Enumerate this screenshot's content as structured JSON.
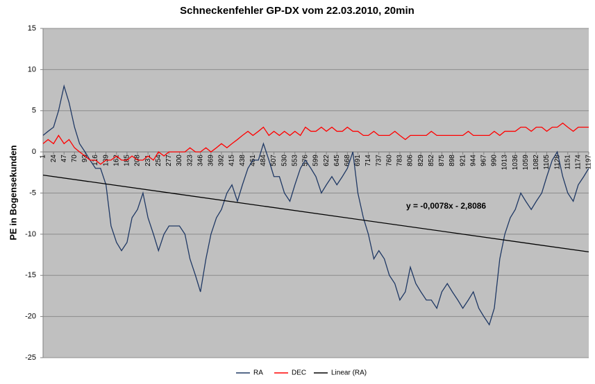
{
  "chart_data": {
    "type": "line",
    "title": "Schneckenfehler  GP-DX vom 22.03.2010, 20min",
    "y_label": "PE in Bogensekunden",
    "annotation": "y = -0,0078x - 2,8086",
    "x": [
      1,
      12,
      24,
      35,
      47,
      58,
      70,
      81,
      93,
      104,
      116,
      127,
      139,
      150,
      162,
      173,
      185,
      196,
      208,
      220,
      231,
      243,
      254,
      266,
      277,
      289,
      300,
      312,
      323,
      335,
      346,
      358,
      369,
      381,
      392,
      404,
      415,
      427,
      438,
      450,
      461,
      473,
      484,
      496,
      507,
      519,
      530,
      542,
      553,
      565,
      576,
      588,
      599,
      611,
      622,
      634,
      645,
      657,
      668,
      680,
      691,
      703,
      714,
      726,
      737,
      749,
      760,
      772,
      783,
      795,
      806,
      818,
      829,
      841,
      852,
      864,
      875,
      887,
      898,
      910,
      921,
      933,
      944,
      956,
      967,
      979,
      990,
      1002,
      1013,
      1025,
      1036,
      1048,
      1059,
      1071,
      1082,
      1094,
      1105,
      1117,
      1128,
      1140,
      1151,
      1163,
      1174,
      1186,
      1197
    ],
    "series": [
      {
        "name": "RA",
        "color": "#1f3864",
        "values": [
          2,
          2.5,
          3,
          5,
          8,
          6,
          3,
          1,
          0,
          -1,
          -2,
          -2,
          -4,
          -9,
          -11,
          -12,
          -11,
          -8,
          -7,
          -5,
          -8,
          -10,
          -12,
          -10,
          -9,
          -9,
          -9,
          -10,
          -13,
          -15,
          -17,
          -13,
          -10,
          -8,
          -7,
          -5,
          -4,
          -6,
          -4,
          -2,
          -1,
          -1,
          1,
          -1,
          -3,
          -3,
          -5,
          -6,
          -4,
          -2,
          -1,
          -2,
          -3,
          -5,
          -4,
          -3,
          -4,
          -3,
          -2,
          0,
          -5,
          -8,
          -10,
          -13,
          -12,
          -13,
          -15,
          -16,
          -18,
          -17,
          -14,
          -16,
          -17,
          -18,
          -18,
          -19,
          -17,
          -16,
          -17,
          -18,
          -19,
          -18,
          -17,
          -19,
          -20,
          -21,
          -19,
          -13,
          -10,
          -8,
          -7,
          -5,
          -6,
          -7,
          -6,
          -5,
          -3,
          -1,
          0,
          -3,
          -5,
          -6,
          -4,
          -3,
          -2
        ]
      },
      {
        "name": "DEC",
        "color": "#ff0000",
        "values": [
          1,
          1.5,
          1,
          2,
          1,
          1.5,
          0.5,
          0,
          -0.5,
          -1,
          -1,
          -1.5,
          -1,
          -1,
          -0.5,
          -1,
          -1,
          -0.5,
          -1,
          -1,
          -0.5,
          -1,
          0,
          -0.5,
          0,
          0,
          0,
          0,
          0.5,
          0,
          0,
          0.5,
          0,
          0.5,
          1,
          0.5,
          1,
          1.5,
          2,
          2.5,
          2,
          2.5,
          3,
          2,
          2.5,
          2,
          2.5,
          2,
          2.5,
          2,
          3,
          2.5,
          2.5,
          3,
          2.5,
          3,
          2.5,
          2.5,
          3,
          2.5,
          2.5,
          2,
          2,
          2.5,
          2,
          2,
          2,
          2.5,
          2,
          1.5,
          2,
          2,
          2,
          2,
          2.5,
          2,
          2,
          2,
          2,
          2,
          2,
          2.5,
          2,
          2,
          2,
          2,
          2.5,
          2,
          2.5,
          2.5,
          2.5,
          3,
          3,
          2.5,
          3,
          3,
          2.5,
          3,
          3,
          3.5,
          3,
          2.5,
          3,
          3,
          3
        ]
      },
      {
        "name": "Linear (RA)",
        "color": "#000000",
        "x": [
          1,
          1197
        ],
        "values": [
          -2.82,
          -12.15
        ]
      }
    ],
    "xlim": [
      1,
      1197
    ],
    "xticks": [
      1,
      24,
      47,
      70,
      93,
      116,
      139,
      162,
      185,
      208,
      231,
      254,
      277,
      300,
      323,
      346,
      369,
      392,
      415,
      438,
      461,
      484,
      507,
      530,
      553,
      576,
      599,
      622,
      645,
      668,
      691,
      714,
      737,
      760,
      783,
      806,
      829,
      852,
      875,
      898,
      921,
      944,
      967,
      990,
      1013,
      1036,
      1059,
      1082,
      1105,
      1128,
      1151,
      1174,
      1197
    ],
    "ylim": [
      -25,
      15
    ],
    "yticks": [
      -25,
      -20,
      -15,
      -10,
      -5,
      0,
      5,
      10,
      15
    ],
    "grid": true,
    "legend": "bottom"
  }
}
